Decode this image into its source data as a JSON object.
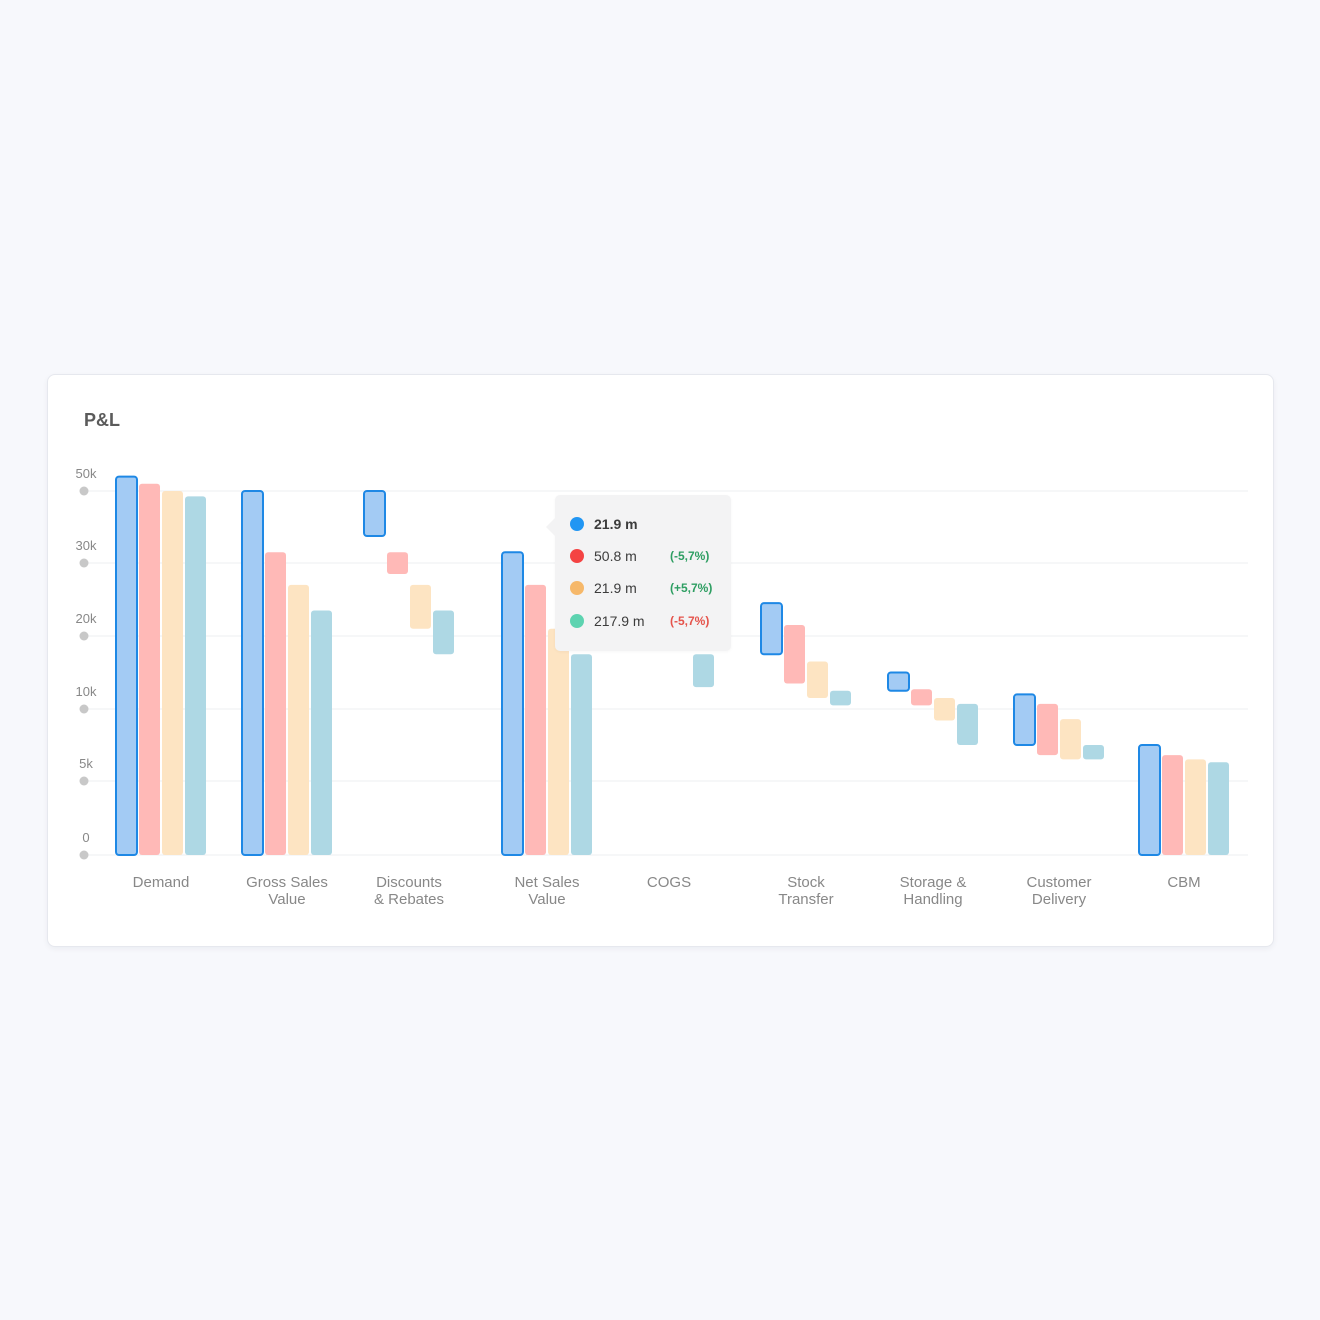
{
  "card": {
    "title": "P&L"
  },
  "colors": {
    "series": [
      "#a3cbf4",
      "#ffb9b7",
      "#fde4c2",
      "#aed8e4"
    ],
    "highlight_stroke": "#1e88e5",
    "grid": "#eeeff2",
    "axis_dot": "#c8c8c8",
    "axis_text": "#888888",
    "positive": "#2e9e62",
    "negative": "#e5534b"
  },
  "tooltip": {
    "category": "Net Sales Value",
    "rows": [
      {
        "color": "#2196f3",
        "value": "21.9 m",
        "change": "",
        "change_color": ""
      },
      {
        "color": "#f44343",
        "value": "50.8 m",
        "change": "(-5,7%)",
        "change_color": "#2e9e62"
      },
      {
        "color": "#f6b86a",
        "value": "21.9 m",
        "change": "(+5,7%)",
        "change_color": "#2e9e62"
      },
      {
        "color": "#5dd3b0",
        "value": "217.9 m",
        "change": "(-5,7%)",
        "change_color": "#e5534b"
      }
    ]
  },
  "chart_data": {
    "type": "bar",
    "subtype": "grouped-waterfall",
    "title": "P&L",
    "ylabel": "",
    "xlabel": "",
    "y_ticks": [
      "0",
      "5k",
      "10k",
      "20k",
      "30k",
      "50k"
    ],
    "y_scale": "piecewise, evenly spaced ticks",
    "ylim": [
      0,
      50000
    ],
    "grid": true,
    "legend": "none",
    "categories": [
      {
        "label": [
          "Demand"
        ],
        "highlight": true,
        "bars": [
          [
            0,
            52000
          ],
          [
            0,
            51000
          ],
          [
            0,
            50000
          ],
          [
            0,
            48500
          ]
        ]
      },
      {
        "label": [
          "Gross Sales",
          "Value"
        ],
        "highlight": true,
        "bars": [
          [
            0,
            50000
          ],
          [
            0,
            33000
          ],
          [
            0,
            27000
          ],
          [
            0,
            23500
          ]
        ]
      },
      {
        "label": [
          "Discounts",
          "& Rebates"
        ],
        "highlight": true,
        "bars": [
          [
            37500,
            50000
          ],
          [
            28500,
            33000
          ],
          [
            21000,
            27000
          ],
          [
            17500,
            23500
          ]
        ]
      },
      {
        "label": [
          "Net Sales",
          "Value"
        ],
        "highlight": true,
        "bars": [
          [
            0,
            33000
          ],
          [
            0,
            27000
          ],
          [
            0,
            21000
          ],
          [
            0,
            17500
          ]
        ]
      },
      {
        "label": [
          "COGS"
        ],
        "highlight": false,
        "bars": [
          [
            null,
            null
          ],
          [
            null,
            null
          ],
          [
            null,
            null
          ],
          [
            13000,
            17500
          ]
        ]
      },
      {
        "label": [
          "Stock",
          "Transfer"
        ],
        "highlight": true,
        "bars": [
          [
            17500,
            24500
          ],
          [
            13500,
            21500
          ],
          [
            11500,
            16500
          ],
          [
            10500,
            12500
          ]
        ]
      },
      {
        "label": [
          "Storage &",
          "Handling"
        ],
        "highlight": true,
        "bars": [
          [
            12500,
            15000
          ],
          [
            10500,
            12700
          ],
          [
            9200,
            11500
          ],
          [
            7500,
            10700
          ]
        ]
      },
      {
        "label": [
          "Customer",
          "Delivery"
        ],
        "highlight": true,
        "bars": [
          [
            7500,
            12000
          ],
          [
            6800,
            10700
          ],
          [
            6500,
            9300
          ],
          [
            6500,
            7500
          ]
        ]
      },
      {
        "label": [
          "CBM"
        ],
        "highlight": true,
        "bars": [
          [
            0,
            7500
          ],
          [
            0,
            6800
          ],
          [
            0,
            6500
          ],
          [
            0,
            6300
          ]
        ]
      }
    ]
  }
}
